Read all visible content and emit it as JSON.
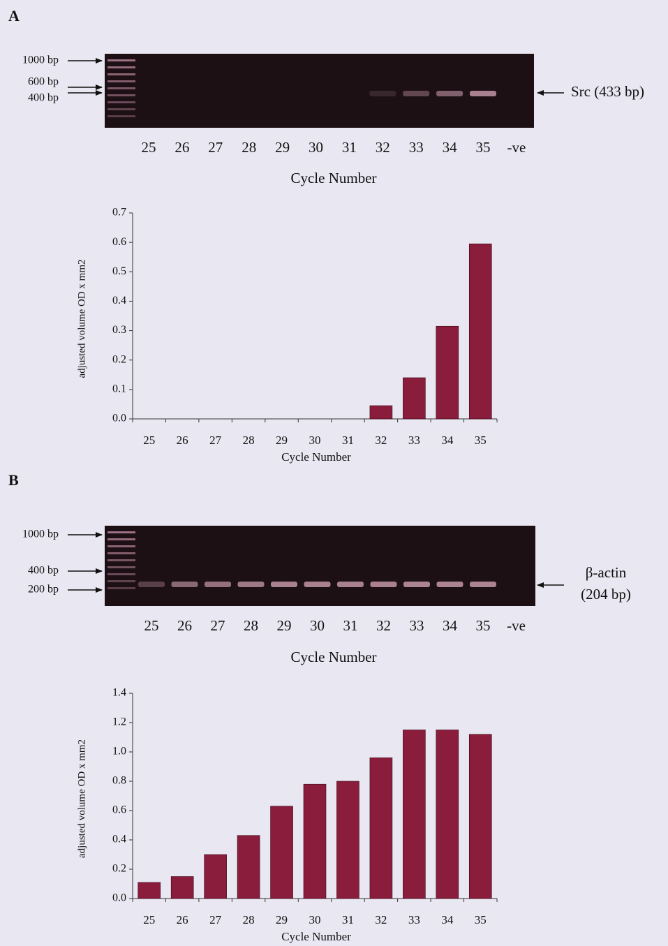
{
  "panels": [
    {
      "label": "A",
      "gel": {
        "markers": [
          "1000 bp",
          "600 bp",
          "400 bp"
        ],
        "lanes": [
          "25",
          "26",
          "27",
          "28",
          "29",
          "30",
          "31",
          "32",
          "33",
          "34",
          "35",
          "-ve"
        ],
        "xlabel": "Cycle Number",
        "product": [
          "Src (433 bp)"
        ]
      }
    },
    {
      "label": "B",
      "gel": {
        "markers": [
          "1000 bp",
          "400 bp",
          "200 bp"
        ],
        "lanes": [
          "25",
          "26",
          "27",
          "28",
          "29",
          "30",
          "31",
          "32",
          "33",
          "34",
          "35",
          "-ve"
        ],
        "xlabel": "Cycle Number",
        "product": [
          "β-actin",
          "(204 bp)"
        ]
      }
    }
  ],
  "chart_data": [
    {
      "type": "bar",
      "categories": [
        "25",
        "26",
        "27",
        "28",
        "29",
        "30",
        "31",
        "32",
        "33",
        "34",
        "35"
      ],
      "values": [
        0,
        0,
        0,
        0,
        0,
        0,
        0,
        0.045,
        0.14,
        0.315,
        0.595
      ],
      "color": "#8a1c3c",
      "x_label": "Cycle Number",
      "y_label": "adjusted volume OD x mm2",
      "ylim": [
        0,
        0.7
      ],
      "yticks": [
        {
          "value": 0,
          "label": "0.0"
        },
        0.1,
        0.2,
        0.3,
        0.4,
        0.5,
        0.6,
        0.7
      ]
    },
    {
      "type": "bar",
      "categories": [
        "25",
        "26",
        "27",
        "28",
        "29",
        "30",
        "31",
        "32",
        "33",
        "34",
        "35"
      ],
      "values": [
        0.11,
        0.15,
        0.3,
        0.43,
        0.63,
        0.78,
        0.8,
        0.96,
        1.15,
        1.15,
        1.12
      ],
      "color": "#8a1c3c",
      "x_label": "Cycle Number",
      "y_label": "adjusted volume OD x mm2",
      "ylim": [
        0,
        1.4
      ],
      "yticks": [
        {
          "value": 0,
          "label": "0.0"
        },
        0.2,
        0.4,
        0.6,
        0.8,
        {
          "value": 1,
          "label": "1.0"
        },
        1.2,
        1.4
      ]
    }
  ]
}
